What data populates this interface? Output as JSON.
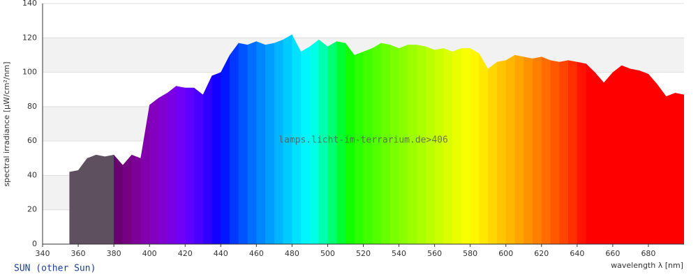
{
  "chart_data": {
    "type": "spectrum",
    "watermark": "lamps.licht-im-terrarium.de>406",
    "x_label": "wavelength λ [nm]",
    "y_label": "spectral irradiance [µW/cm²/nm]",
    "x": [
      355,
      360,
      365,
      370,
      375,
      380,
      385,
      390,
      395,
      400,
      405,
      410,
      415,
      420,
      425,
      430,
      435,
      440,
      445,
      450,
      455,
      460,
      465,
      470,
      475,
      480,
      485,
      490,
      495,
      500,
      505,
      510,
      515,
      520,
      525,
      530,
      535,
      540,
      545,
      550,
      555,
      560,
      565,
      570,
      575,
      580,
      585,
      590,
      595,
      600,
      605,
      610,
      615,
      620,
      625,
      630,
      635,
      640,
      645,
      650,
      655,
      660,
      665,
      670,
      675,
      680,
      685,
      690,
      695,
      700
    ],
    "series": [
      {
        "name": "SUN (other Sun)",
        "values": [
          42,
          43,
          50,
          52,
          51,
          52,
          46,
          52,
          50,
          81,
          85,
          88,
          92,
          91,
          91,
          87,
          98,
          100,
          110,
          117,
          116,
          118,
          116,
          117,
          119,
          122,
          112,
          115,
          119,
          115,
          118,
          117,
          110,
          112,
          114,
          117,
          116,
          114,
          116,
          116,
          115,
          113,
          114,
          112,
          114,
          114,
          111,
          102,
          106,
          107,
          110,
          109,
          108,
          109,
          107,
          106,
          107,
          106,
          105,
          100,
          94,
          100,
          104,
          102,
          101,
          99,
          93,
          86,
          88,
          87
        ]
      }
    ],
    "xlim": [
      340,
      700
    ],
    "ylim": [
      0,
      140
    ],
    "xticks": [
      340,
      360,
      380,
      400,
      420,
      440,
      460,
      480,
      500,
      520,
      540,
      560,
      580,
      600,
      620,
      640,
      660,
      680
    ],
    "yticks": [
      0,
      20,
      40,
      60,
      80,
      100,
      120,
      140
    ],
    "grid": true
  }
}
